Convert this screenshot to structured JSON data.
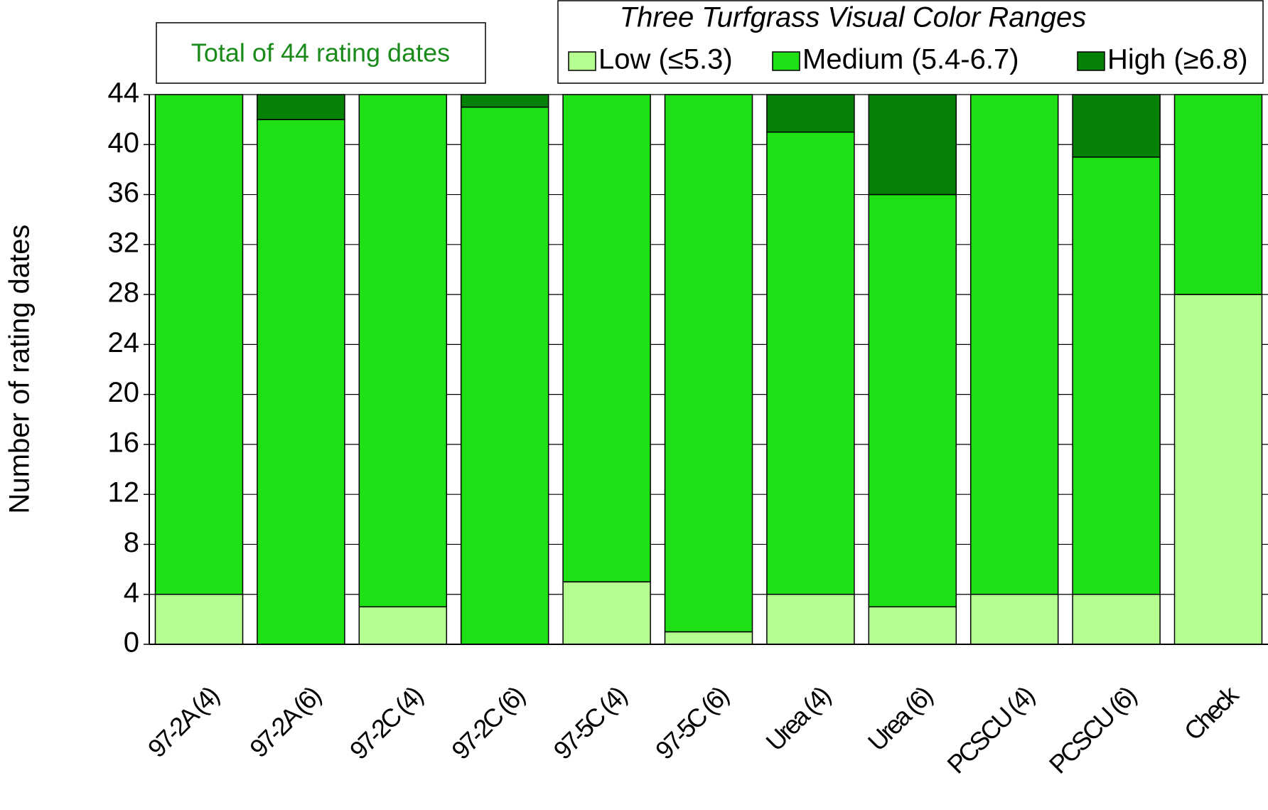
{
  "chart_data": {
    "type": "stacked-bar",
    "y_label": "Number of rating dates",
    "annotation": "Total of 44 rating dates",
    "legend_title": "Three Turfgrass Visual Color Ranges",
    "categories": [
      "97-2A (4)",
      "97-2A (6)",
      "97-2C (4)",
      "97-2C (6)",
      "97-5C (4)",
      "97-5C (6)",
      "Urea (4)",
      "Urea (6)",
      "PCSCU (4)",
      "PCSCU (6)",
      "Check"
    ],
    "series": [
      {
        "name": "Low (≤5.3)",
        "color": "#b5ff90",
        "values": [
          4,
          0,
          3,
          0,
          5,
          1,
          4,
          3,
          4,
          4,
          28
        ]
      },
      {
        "name": "Medium (5.4-6.7)",
        "color": "#1ee014",
        "values": [
          40,
          42,
          41,
          43,
          39,
          43,
          37,
          33,
          40,
          35,
          16
        ]
      },
      {
        "name": "High (≥6.8)",
        "color": "#058205",
        "values": [
          0,
          2,
          0,
          1,
          0,
          0,
          3,
          8,
          0,
          5,
          0
        ]
      }
    ],
    "ylim": [
      0,
      44
    ],
    "yticks": [
      0,
      4,
      8,
      12,
      16,
      20,
      24,
      28,
      32,
      36,
      40,
      44
    ],
    "grid": true
  }
}
